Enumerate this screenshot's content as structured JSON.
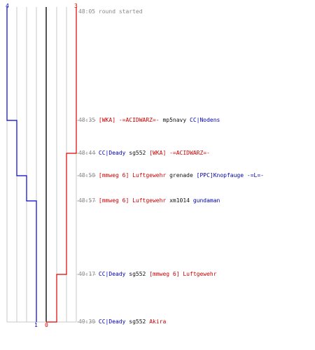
{
  "colors": {
    "blue": "#0000cc",
    "red": "#dd0000",
    "gray": "#9a9a9a",
    "dark": "#555555"
  },
  "top_labels": {
    "left": "4",
    "right": "3"
  },
  "bottom_labels": {
    "left": "1",
    "right": "0"
  },
  "events": [
    {
      "time": "48:05",
      "text": "round started"
    },
    {
      "time": "48:35",
      "p1": "[WKA] -=ACIDWARZ=-",
      "p1_team": "red",
      "weapon": "mp5navy",
      "p2": "CC|Nodens",
      "p2_team": "blue"
    },
    {
      "time": "48:44",
      "p1": "CC|Deady",
      "p1_team": "blue",
      "weapon": "sg552",
      "p2": "[WKA] -=ACIDWARZ=-",
      "p2_team": "red"
    },
    {
      "time": "48:50",
      "p1": "[mmweg 6] Luftgewehr",
      "p1_team": "red",
      "weapon": "grenade",
      "p2": "[PPC]Knopfauge -=L=-",
      "p2_team": "blue"
    },
    {
      "time": "48:57",
      "p1": "[mmweg 6] Luftgewehr",
      "p1_team": "red",
      "weapon": "xm1014",
      "p2": "gundaman",
      "p2_team": "blue"
    },
    {
      "time": "49:17",
      "p1": "CC|Deady",
      "p1_team": "blue",
      "weapon": "sg552",
      "p2": "[mmweg 6] Luftgewehr",
      "p2_team": "red"
    },
    {
      "time": "49:30",
      "p1": "CC|Deady",
      "p1_team": "blue",
      "weapon": "sg552",
      "p2": "Akira",
      "p2_team": "red"
    }
  ]
}
